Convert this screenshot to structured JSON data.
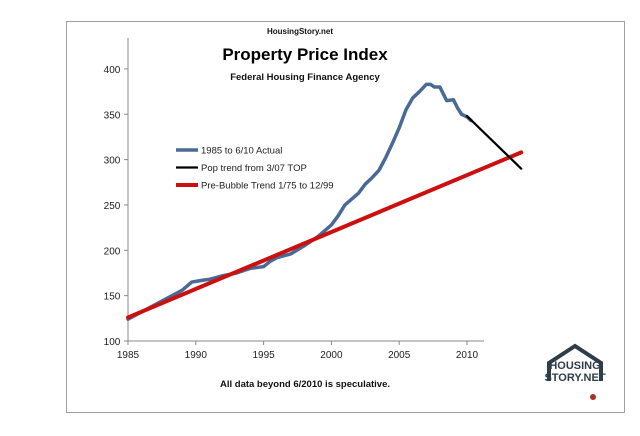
{
  "chart_data": {
    "type": "line",
    "source_label": "HousingStory.net",
    "title": "Property Price Index",
    "subtitle": "Federal Housing Finance Agency",
    "note": "All data beyond 6/2010 is speculative.",
    "xlabel": "",
    "ylabel": "",
    "xlim": [
      1985,
      2014
    ],
    "ylim": [
      100,
      400
    ],
    "x_ticks": [
      "1985",
      "1990",
      "1995",
      "2000",
      "2005",
      "2010"
    ],
    "y_ticks": [
      "100",
      "150",
      "200",
      "250",
      "300",
      "350",
      "400"
    ],
    "grid": false,
    "legend_position": "left-middle",
    "series": [
      {
        "name": "1985 to 6/10 Actual",
        "color": "#4a6a96",
        "points": [
          [
            1985,
            124
          ],
          [
            1986,
            132
          ],
          [
            1987,
            140
          ],
          [
            1988,
            148
          ],
          [
            1989,
            156
          ],
          [
            1989.7,
            165
          ],
          [
            1990.5,
            167
          ],
          [
            1991,
            168
          ],
          [
            1991.5,
            170
          ],
          [
            1992,
            172
          ],
          [
            1993,
            175
          ],
          [
            1994,
            180
          ],
          [
            1995,
            182
          ],
          [
            1995.5,
            188
          ],
          [
            1996,
            192
          ],
          [
            1997,
            196
          ],
          [
            1998,
            205
          ],
          [
            1999,
            215
          ],
          [
            2000,
            228
          ],
          [
            2000.5,
            238
          ],
          [
            2001,
            250
          ],
          [
            2002,
            263
          ],
          [
            2002.5,
            273
          ],
          [
            2003,
            280
          ],
          [
            2003.5,
            288
          ],
          [
            2004,
            302
          ],
          [
            2004.5,
            318
          ],
          [
            2005,
            335
          ],
          [
            2005.5,
            355
          ],
          [
            2006,
            368
          ],
          [
            2006.5,
            375
          ],
          [
            2007,
            383
          ],
          [
            2007.3,
            383
          ],
          [
            2007.6,
            380
          ],
          [
            2008,
            380
          ],
          [
            2008.5,
            365
          ],
          [
            2009,
            366
          ],
          [
            2009.3,
            357
          ],
          [
            2009.6,
            350
          ],
          [
            2010,
            347
          ],
          [
            2010.3,
            343
          ]
        ]
      },
      {
        "name": "Pop trend from 3/07 TOP",
        "color": "#000000",
        "points": [
          [
            2010,
            348
          ],
          [
            2014,
            290
          ]
        ]
      },
      {
        "name": "Pre-Bubble Trend 1/75 to 12/99",
        "color": "#cc1010",
        "points": [
          [
            1985,
            126
          ],
          [
            2014,
            308
          ]
        ]
      }
    ]
  },
  "logo": {
    "line1": "HOUSING",
    "line2": "STORY.NET"
  }
}
